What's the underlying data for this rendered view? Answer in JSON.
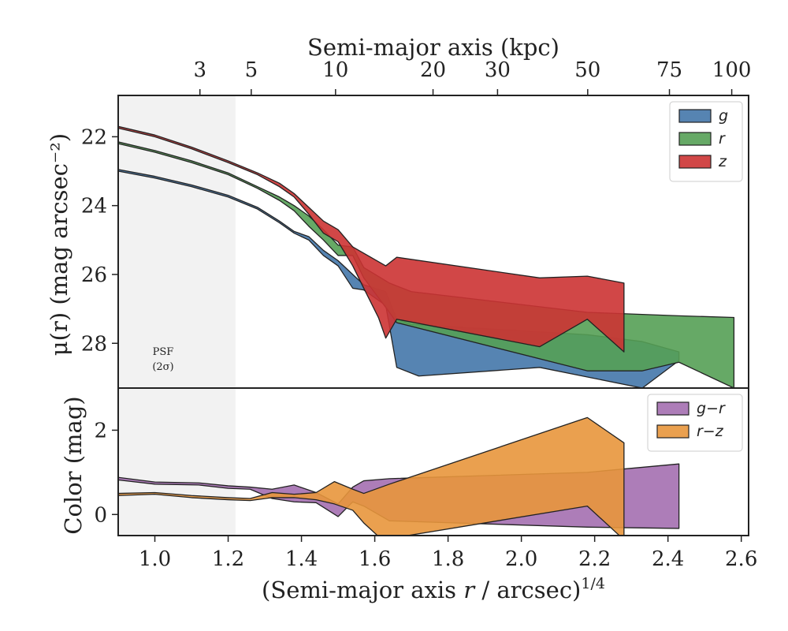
{
  "chart_data": [
    {
      "type": "area",
      "panel": "surface-brightness",
      "top_axis": {
        "label": "Semi-major axis (kpc)",
        "ticks": [
          3,
          5,
          10,
          20,
          30,
          50,
          75,
          100
        ],
        "tick_positions_x": [
          1.123,
          1.263,
          1.493,
          1.759,
          1.935,
          2.181,
          2.404,
          2.574
        ]
      },
      "ylabel": "μ(r) (mag arcsec⁻²)",
      "ylim": [
        29.3,
        20.8
      ],
      "yticks": [
        22,
        24,
        26,
        28
      ],
      "annotation": [
        "PSF",
        "(2σ)"
      ],
      "psf_region": [
        0.9,
        1.22
      ],
      "legend": "top-right",
      "series": [
        {
          "name": "g",
          "color": "#4477aa",
          "upper": [
            [
              0.9,
              22.95
            ],
            [
              1.0,
              23.15
            ],
            [
              1.1,
              23.4
            ],
            [
              1.2,
              23.7
            ],
            [
              1.28,
              24.05
            ],
            [
              1.34,
              24.45
            ],
            [
              1.38,
              24.75
            ],
            [
              1.42,
              24.9
            ],
            [
              1.46,
              25.3
            ],
            [
              1.5,
              25.6
            ],
            [
              1.54,
              26.0
            ],
            [
              1.57,
              26.3
            ],
            [
              1.63,
              26.5
            ],
            [
              1.66,
              27.3
            ],
            [
              1.7,
              27.45
            ],
            [
              2.18,
              27.75
            ],
            [
              2.33,
              27.95
            ],
            [
              2.43,
              28.25
            ]
          ],
          "lower": [
            [
              0.9,
              23.0
            ],
            [
              1.0,
              23.2
            ],
            [
              1.1,
              23.45
            ],
            [
              1.2,
              23.75
            ],
            [
              1.28,
              24.1
            ],
            [
              1.34,
              24.5
            ],
            [
              1.38,
              24.8
            ],
            [
              1.42,
              25.0
            ],
            [
              1.46,
              25.45
            ],
            [
              1.5,
              25.75
            ],
            [
              1.54,
              26.4
            ],
            [
              1.57,
              26.45
            ],
            [
              1.63,
              26.9
            ],
            [
              1.66,
              28.7
            ],
            [
              1.72,
              28.95
            ],
            [
              2.05,
              28.7
            ],
            [
              2.33,
              29.3
            ],
            [
              2.43,
              28.5
            ]
          ]
        },
        {
          "name": "r",
          "color": "#55a055",
          "upper": [
            [
              0.9,
              22.15
            ],
            [
              1.0,
              22.4
            ],
            [
              1.1,
              22.7
            ],
            [
              1.2,
              23.05
            ],
            [
              1.28,
              23.45
            ],
            [
              1.34,
              23.75
            ],
            [
              1.38,
              24.0
            ],
            [
              1.42,
              24.3
            ],
            [
              1.46,
              24.7
            ],
            [
              1.5,
              25.15
            ],
            [
              1.54,
              25.2
            ],
            [
              1.57,
              25.8
            ],
            [
              1.64,
              26.25
            ],
            [
              1.7,
              26.5
            ],
            [
              2.18,
              27.1
            ],
            [
              2.43,
              27.2
            ],
            [
              2.58,
              27.25
            ]
          ],
          "lower": [
            [
              0.9,
              22.2
            ],
            [
              1.0,
              22.45
            ],
            [
              1.1,
              22.75
            ],
            [
              1.2,
              23.1
            ],
            [
              1.28,
              23.5
            ],
            [
              1.34,
              23.85
            ],
            [
              1.38,
              24.15
            ],
            [
              1.42,
              24.6
            ],
            [
              1.46,
              25.0
            ],
            [
              1.5,
              25.45
            ],
            [
              1.54,
              25.45
            ],
            [
              1.57,
              26.1
            ],
            [
              1.64,
              27.1
            ],
            [
              1.66,
              27.4
            ],
            [
              2.18,
              28.8
            ],
            [
              2.33,
              28.8
            ],
            [
              2.43,
              28.55
            ],
            [
              2.58,
              29.3
            ]
          ]
        },
        {
          "name": "z",
          "color": "#cc3333",
          "upper": [
            [
              0.9,
              21.7
            ],
            [
              1.0,
              21.95
            ],
            [
              1.1,
              22.3
            ],
            [
              1.2,
              22.7
            ],
            [
              1.28,
              23.05
            ],
            [
              1.34,
              23.35
            ],
            [
              1.38,
              23.65
            ],
            [
              1.42,
              24.05
            ],
            [
              1.46,
              24.45
            ],
            [
              1.5,
              24.7
            ],
            [
              1.54,
              25.2
            ],
            [
              1.63,
              25.75
            ],
            [
              1.66,
              25.5
            ],
            [
              2.05,
              26.1
            ],
            [
              2.18,
              26.05
            ],
            [
              2.28,
              26.25
            ]
          ],
          "lower": [
            [
              0.9,
              21.75
            ],
            [
              1.0,
              22.0
            ],
            [
              1.1,
              22.35
            ],
            [
              1.2,
              22.75
            ],
            [
              1.28,
              23.1
            ],
            [
              1.34,
              23.45
            ],
            [
              1.38,
              23.75
            ],
            [
              1.42,
              24.25
            ],
            [
              1.46,
              24.8
            ],
            [
              1.5,
              25.05
            ],
            [
              1.54,
              25.75
            ],
            [
              1.57,
              26.4
            ],
            [
              1.61,
              27.25
            ],
            [
              1.63,
              27.85
            ],
            [
              1.66,
              27.3
            ],
            [
              2.05,
              28.1
            ],
            [
              2.18,
              27.3
            ],
            [
              2.28,
              28.25
            ]
          ]
        }
      ]
    },
    {
      "type": "area",
      "panel": "color",
      "xlabel": "(Semi-major axis r / arcsec)^1/4",
      "xlim": [
        0.9,
        2.62
      ],
      "xticks": [
        1.0,
        1.2,
        1.4,
        1.6,
        1.8,
        2.0,
        2.2,
        2.4,
        2.6
      ],
      "xtick_labels": [
        "1.0",
        "1.2",
        "1.4",
        "1.6",
        "1.8",
        "2.0",
        "2.2",
        "2.4",
        "2.6"
      ],
      "ylabel": "Color (mag)",
      "ylim": [
        -0.5,
        3.0
      ],
      "yticks": [
        0,
        2
      ],
      "legend": "top-right",
      "series": [
        {
          "name": "g−r",
          "color": "#a46fb0",
          "upper": [
            [
              0.9,
              0.88
            ],
            [
              1.0,
              0.77
            ],
            [
              1.12,
              0.75
            ],
            [
              1.2,
              0.68
            ],
            [
              1.26,
              0.65
            ],
            [
              1.32,
              0.6
            ],
            [
              1.38,
              0.7
            ],
            [
              1.44,
              0.52
            ],
            [
              1.5,
              0.25
            ],
            [
              1.54,
              0.65
            ],
            [
              1.57,
              0.8
            ],
            [
              1.64,
              0.85
            ],
            [
              2.18,
              1.0
            ],
            [
              2.43,
              1.2
            ]
          ],
          "lower": [
            [
              0.9,
              0.82
            ],
            [
              1.0,
              0.72
            ],
            [
              1.12,
              0.7
            ],
            [
              1.2,
              0.62
            ],
            [
              1.26,
              0.6
            ],
            [
              1.32,
              0.38
            ],
            [
              1.38,
              0.3
            ],
            [
              1.44,
              0.28
            ],
            [
              1.5,
              -0.05
            ],
            [
              1.54,
              0.3
            ],
            [
              1.57,
              0.2
            ],
            [
              1.64,
              -0.15
            ],
            [
              2.18,
              -0.3
            ],
            [
              2.43,
              -0.33
            ]
          ]
        },
        {
          "name": "r−z",
          "color": "#e8963c",
          "upper": [
            [
              0.9,
              0.5
            ],
            [
              1.0,
              0.52
            ],
            [
              1.1,
              0.45
            ],
            [
              1.2,
              0.4
            ],
            [
              1.26,
              0.38
            ],
            [
              1.32,
              0.52
            ],
            [
              1.38,
              0.48
            ],
            [
              1.44,
              0.52
            ],
            [
              1.49,
              0.78
            ],
            [
              1.54,
              0.6
            ],
            [
              1.57,
              0.5
            ],
            [
              1.64,
              0.72
            ],
            [
              2.18,
              2.3
            ],
            [
              2.28,
              1.7
            ]
          ],
          "lower": [
            [
              0.9,
              0.45
            ],
            [
              1.0,
              0.48
            ],
            [
              1.1,
              0.4
            ],
            [
              1.2,
              0.35
            ],
            [
              1.26,
              0.33
            ],
            [
              1.32,
              0.4
            ],
            [
              1.38,
              0.4
            ],
            [
              1.44,
              0.35
            ],
            [
              1.49,
              0.25
            ],
            [
              1.54,
              0.1
            ],
            [
              1.57,
              -0.2
            ],
            [
              1.62,
              -0.6
            ],
            [
              2.18,
              0.2
            ],
            [
              2.28,
              -0.6
            ]
          ]
        }
      ]
    }
  ]
}
